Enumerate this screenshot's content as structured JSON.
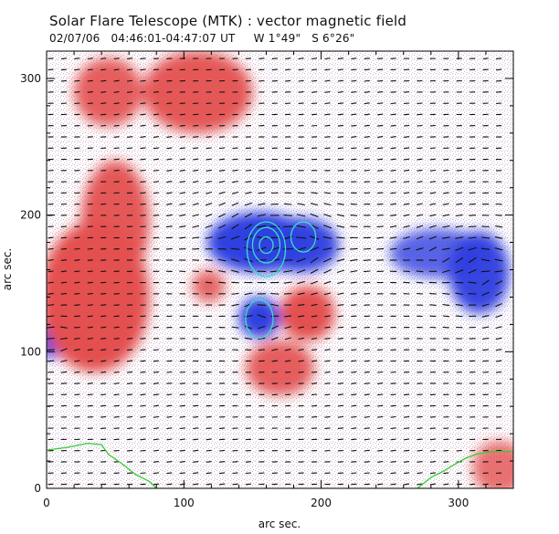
{
  "header": {
    "title": "Solar Flare Telescope (MTK) : vector magnetic field",
    "subtitle": "02/07/06   04:46:01-04:47:07 UT     W 1°49\"   S 6°26\""
  },
  "colors": {
    "positive": "#e45050",
    "negative": "#2f3fe0",
    "contour": "#35e0c8",
    "vector": "#111111",
    "limb": "#33cc33",
    "frame": "#000000",
    "background": "#ffffff"
  },
  "chart_data": {
    "type": "heatmap",
    "title": "Solar Flare Telescope (MTK) : vector magnetic field",
    "subtitle": "02/07/06   04:46:01-04:47:07 UT     W 1°49\"   S 6°26\"",
    "xlabel": "arc sec.",
    "ylabel": "arc sec.",
    "xlim": [
      0,
      340
    ],
    "ylim": [
      0,
      320
    ],
    "xticks": [
      0,
      100,
      200,
      300
    ],
    "yticks": [
      0,
      100,
      200,
      300
    ],
    "color_meaning": "line-of-sight field: red = positive, blue = negative",
    "field_regions": [
      {
        "name": "negative-main",
        "polarity": "negative",
        "x": 155,
        "y": 180,
        "rx": 38,
        "ry": 22,
        "strength": 1.0
      },
      {
        "name": "negative-east-lobe",
        "polarity": "negative",
        "x": 185,
        "y": 178,
        "rx": 28,
        "ry": 20,
        "strength": 0.9
      },
      {
        "name": "negative-south",
        "polarity": "negative",
        "x": 155,
        "y": 125,
        "rx": 15,
        "ry": 15,
        "strength": 1.0
      },
      {
        "name": "negative-west",
        "polarity": "negative",
        "x": 315,
        "y": 158,
        "rx": 22,
        "ry": 30,
        "strength": 0.9
      },
      {
        "name": "negative-west-ext",
        "polarity": "negative",
        "x": 285,
        "y": 172,
        "rx": 35,
        "ry": 18,
        "strength": 0.5
      },
      {
        "name": "negative-edge-left",
        "polarity": "negative",
        "x": 3,
        "y": 110,
        "rx": 10,
        "ry": 15,
        "strength": 0.9
      },
      {
        "name": "positive-top-left",
        "polarity": "positive",
        "x": 45,
        "y": 290,
        "rx": 25,
        "ry": 25,
        "strength": 0.8
      },
      {
        "name": "positive-top-center",
        "polarity": "positive",
        "x": 110,
        "y": 290,
        "rx": 40,
        "ry": 30,
        "strength": 0.9
      },
      {
        "name": "positive-left-large",
        "polarity": "positive",
        "x": 35,
        "y": 140,
        "rx": 40,
        "ry": 55,
        "strength": 1.0
      },
      {
        "name": "positive-left-mid",
        "polarity": "positive",
        "x": 50,
        "y": 195,
        "rx": 25,
        "ry": 45,
        "strength": 0.9
      },
      {
        "name": "positive-center-south",
        "polarity": "positive",
        "x": 190,
        "y": 128,
        "rx": 20,
        "ry": 20,
        "strength": 1.0
      },
      {
        "name": "positive-plage-south",
        "polarity": "positive",
        "x": 170,
        "y": 88,
        "rx": 25,
        "ry": 20,
        "strength": 0.8
      },
      {
        "name": "positive-small-center",
        "polarity": "positive",
        "x": 118,
        "y": 148,
        "rx": 12,
        "ry": 12,
        "strength": 0.7
      },
      {
        "name": "positive-bottom-right",
        "polarity": "positive",
        "x": 330,
        "y": 15,
        "rx": 20,
        "ry": 20,
        "strength": 0.5
      }
    ],
    "contours": [
      {
        "x": 160,
        "y": 175,
        "rx": 14,
        "ry": 20
      },
      {
        "x": 160,
        "y": 178,
        "rx": 10,
        "ry": 13
      },
      {
        "x": 160,
        "y": 178,
        "rx": 5,
        "ry": 6
      },
      {
        "x": 187,
        "y": 184,
        "rx": 9,
        "ry": 11
      },
      {
        "x": 155,
        "y": 124,
        "rx": 10,
        "ry": 14
      }
    ],
    "limb_lines": [
      {
        "name": "limb-lower-left",
        "points": [
          [
            0,
            28
          ],
          [
            15,
            30
          ],
          [
            30,
            33
          ],
          [
            40,
            32
          ],
          [
            45,
            25
          ],
          [
            55,
            18
          ],
          [
            65,
            10
          ],
          [
            75,
            5
          ],
          [
            80,
            0
          ]
        ]
      },
      {
        "name": "limb-lower-right",
        "points": [
          [
            270,
            0
          ],
          [
            280,
            8
          ],
          [
            288,
            12
          ],
          [
            298,
            18
          ],
          [
            305,
            22
          ],
          [
            313,
            25
          ],
          [
            325,
            27
          ],
          [
            340,
            27
          ]
        ]
      }
    ]
  }
}
